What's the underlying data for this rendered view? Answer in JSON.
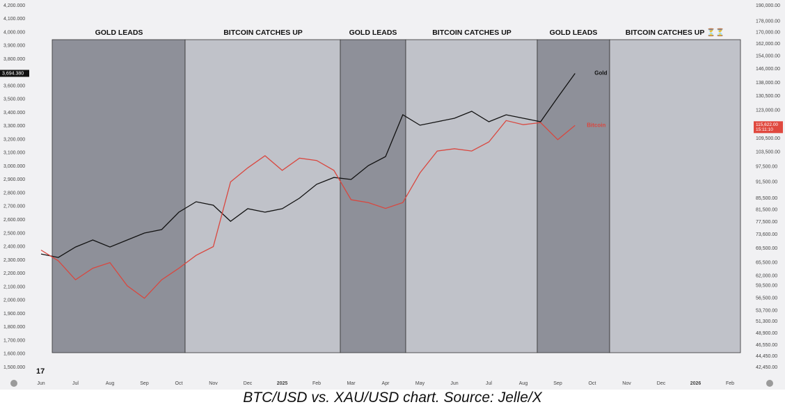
{
  "chart_data": {
    "type": "line",
    "caption": "BTC/USD vs. XAU/USD chart. Source: Jelle/X",
    "annotations": [
      "GOLD LEADS",
      "BITCOIN CATCHES UP",
      "GOLD LEADS",
      "BITCOIN CATCHES UP",
      "GOLD LEADS",
      "BITCOIN CATCHES UP ⏳⏳"
    ],
    "price_labels": {
      "gold": "3,694.380",
      "bitcoin": "115,622.00",
      "countdown": "15:11:10"
    },
    "categories": [
      "Jun",
      null,
      "Jul",
      null,
      "Aug",
      null,
      "Sep",
      null,
      "Oct",
      null,
      "Nov",
      null,
      "Dec",
      null,
      "2025",
      null,
      "Feb",
      null,
      "Mar",
      null,
      "Apr",
      null,
      "May",
      null,
      "Jun",
      null,
      "Jul",
      null,
      "Aug",
      null,
      "Sep",
      null,
      "Oct",
      null,
      "Nov",
      null,
      "Dec",
      null,
      "2026",
      null,
      "Feb"
    ],
    "series": [
      {
        "name": "Gold",
        "color": "#111111",
        "axis": "y",
        "values": [
          2346,
          2320,
          2398,
          2450,
          2398,
          2450,
          2502,
          2528,
          2658,
          2736,
          2710,
          2590,
          2684,
          2658,
          2684,
          2762,
          2866,
          2917,
          2902,
          3006,
          3073,
          3385,
          3307,
          3333,
          3359,
          3411,
          3333,
          3385,
          3359,
          3333,
          3515,
          3694,
          null,
          null,
          null,
          null,
          null,
          null,
          null,
          null,
          null
        ]
      },
      {
        "name": "Bitcoin",
        "color": "#d9473f",
        "axis": "y2",
        "values": [
          69000,
          66000,
          61000,
          64000,
          65500,
          59500,
          56500,
          61000,
          64000,
          67500,
          70000,
          91500,
          97000,
          102000,
          96000,
          101000,
          100000,
          96000,
          85000,
          84000,
          82000,
          84000,
          95000,
          104000,
          105000,
          104000,
          108000,
          118000,
          116000,
          117000,
          109000,
          115622,
          null,
          null,
          null,
          null,
          null,
          null,
          null,
          null,
          null
        ]
      }
    ],
    "ylim": [
      1500,
      4200
    ],
    "yticks": [
      {
        "value": 1500,
        "label": "1,500.000"
      },
      {
        "value": 1600,
        "label": "1,600.000"
      },
      {
        "value": 1700,
        "label": "1,700.000"
      },
      {
        "value": 1800,
        "label": "1,800.000"
      },
      {
        "value": 1900,
        "label": "1,900.000"
      },
      {
        "value": 2000,
        "label": "2,000.000"
      },
      {
        "value": 2100,
        "label": "2,100.000"
      },
      {
        "value": 2200,
        "label": "2,200.000"
      },
      {
        "value": 2300,
        "label": "2,300.000"
      },
      {
        "value": 2400,
        "label": "2,400.000"
      },
      {
        "value": 2500,
        "label": "2,500.000"
      },
      {
        "value": 2600,
        "label": "2,600.000"
      },
      {
        "value": 2700,
        "label": "2,700.000"
      },
      {
        "value": 2800,
        "label": "2,800.000"
      },
      {
        "value": 2900,
        "label": "2,900.000"
      },
      {
        "value": 3000,
        "label": "3,000.000"
      },
      {
        "value": 3100,
        "label": "3,100.000"
      },
      {
        "value": 3200,
        "label": "3,200.000"
      },
      {
        "value": 3300,
        "label": "3,300.000"
      },
      {
        "value": 3400,
        "label": "3,400.000"
      },
      {
        "value": 3500,
        "label": "3,500.000"
      },
      {
        "value": 3600,
        "label": "3,600.000"
      },
      {
        "value": 3800,
        "label": "3,800.000"
      },
      {
        "value": 3900,
        "label": "3,900.000"
      },
      {
        "value": 4000,
        "label": "4,000.000"
      },
      {
        "value": 4100,
        "label": "4,100.000"
      },
      {
        "value": 4200,
        "label": "4,200.000"
      }
    ],
    "y2lim": [
      42450,
      190000
    ],
    "y2_log": true,
    "y2ticks": [
      {
        "value": 42450,
        "label": "42,450.00"
      },
      {
        "value": 44450,
        "label": "44,450.00"
      },
      {
        "value": 46550,
        "label": "46,550.00"
      },
      {
        "value": 48900,
        "label": "48,900.00"
      },
      {
        "value": 51300,
        "label": "51,300.00"
      },
      {
        "value": 53700,
        "label": "53,700.00"
      },
      {
        "value": 56500,
        "label": "56,500.00"
      },
      {
        "value": 59500,
        "label": "59,500.00"
      },
      {
        "value": 62000,
        "label": "62,000.00"
      },
      {
        "value": 65500,
        "label": "65,500.00"
      },
      {
        "value": 69500,
        "label": "69,500.00"
      },
      {
        "value": 73600,
        "label": "73,600.00"
      },
      {
        "value": 77500,
        "label": "77,500.00"
      },
      {
        "value": 81500,
        "label": "81,500.00"
      },
      {
        "value": 85500,
        "label": "85,500.00"
      },
      {
        "value": 91500,
        "label": "91,500.00"
      },
      {
        "value": 97500,
        "label": "97,500.00"
      },
      {
        "value": 103500,
        "label": "103,500.00"
      },
      {
        "value": 109500,
        "label": "109,500.00"
      },
      {
        "value": 123000,
        "label": "123,000.00"
      },
      {
        "value": 130500,
        "label": "130,500.00"
      },
      {
        "value": 138000,
        "label": "138,000.00"
      },
      {
        "value": 146000,
        "label": "146,000.00"
      },
      {
        "value": 154000,
        "label": "154,000.00"
      },
      {
        "value": 162000,
        "label": "162,000.00"
      },
      {
        "value": 170000,
        "label": "170,000.00"
      },
      {
        "value": 178000,
        "label": "178,000.00"
      },
      {
        "value": 190000,
        "label": "190,000.00"
      }
    ],
    "grid": false
  }
}
